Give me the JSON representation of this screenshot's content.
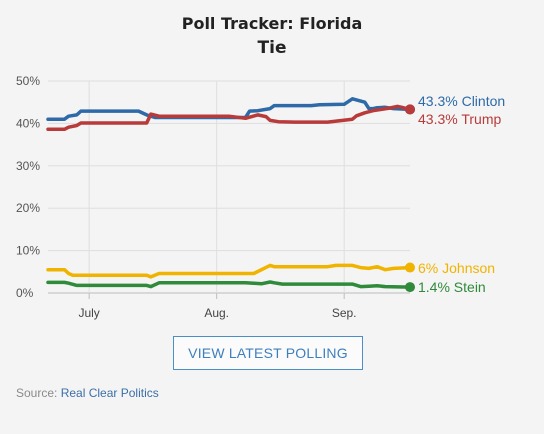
{
  "header": {
    "title": "Poll Tracker: Florida",
    "subtitle": "Tie"
  },
  "button": {
    "label": "VIEW LATEST POLLING"
  },
  "source": {
    "prefix": "Source:",
    "link": "Real Clear Politics"
  },
  "chart_data": {
    "type": "line",
    "title": "Poll Tracker: Florida",
    "ylim": [
      0,
      50
    ],
    "yticks": [
      0,
      10,
      20,
      30,
      40,
      50
    ],
    "ytick_labels": [
      "0%",
      "10%",
      "20%",
      "30%",
      "40%",
      "50%"
    ],
    "xticks": [
      {
        "label": "July",
        "x": 6
      },
      {
        "label": "Aug.",
        "x": 37
      },
      {
        "label": "Sep.",
        "x": 68
      }
    ],
    "xlim": [
      -4,
      84
    ],
    "grid": true,
    "series": [
      {
        "name": "Clinton",
        "label": "43.3% Clinton",
        "color": "#2e6aa8",
        "x": [
          -4,
          0,
          1,
          3,
          4,
          6,
          18,
          20,
          22,
          40,
          44,
          45,
          47,
          50,
          51,
          60,
          62,
          68,
          70,
          73,
          74,
          75,
          76,
          78,
          80,
          84
        ],
        "y": [
          41.0,
          41.0,
          41.7,
          42.0,
          42.9,
          42.9,
          42.9,
          42.0,
          41.4,
          41.4,
          41.4,
          42.9,
          43.0,
          43.5,
          44.2,
          44.2,
          44.4,
          44.5,
          45.8,
          45.0,
          43.5,
          43.5,
          43.7,
          43.8,
          43.5,
          43.3
        ]
      },
      {
        "name": "Trump",
        "label": "43.3% Trump",
        "color": "#b83a3a",
        "x": [
          -4,
          0,
          1,
          3,
          4,
          6,
          20,
          21,
          23,
          40,
          44,
          47,
          49,
          50,
          52,
          56,
          64,
          70,
          71,
          73,
          75,
          77,
          79,
          81,
          82,
          84
        ],
        "y": [
          38.6,
          38.6,
          39.1,
          39.5,
          40.1,
          40.1,
          40.1,
          42.2,
          41.7,
          41.7,
          41.2,
          42.0,
          41.6,
          40.7,
          40.4,
          40.3,
          40.3,
          41.0,
          41.8,
          42.5,
          43.0,
          43.3,
          43.6,
          44.0,
          43.8,
          43.3
        ]
      },
      {
        "name": "Johnson",
        "label": "6% Johnson",
        "color": "#f0b400",
        "x": [
          -4,
          0,
          1,
          2,
          20,
          21,
          23,
          44,
          46,
          50,
          51,
          56,
          64,
          66,
          70,
          72,
          74,
          76,
          78,
          80,
          84
        ],
        "y": [
          5.5,
          5.5,
          4.6,
          4.2,
          4.2,
          3.8,
          4.6,
          4.6,
          4.6,
          6.5,
          6.2,
          6.2,
          6.2,
          6.5,
          6.5,
          6.0,
          5.8,
          6.2,
          5.5,
          5.8,
          6.0
        ]
      },
      {
        "name": "Stein",
        "label": "1.4% Stein",
        "color": "#2f8a3a",
        "x": [
          -4,
          0,
          1,
          3,
          20,
          21,
          23,
          44,
          46,
          48,
          50,
          51,
          53,
          70,
          72,
          74,
          76,
          78,
          84
        ],
        "y": [
          2.5,
          2.5,
          2.3,
          1.8,
          1.8,
          1.5,
          2.4,
          2.4,
          2.3,
          2.2,
          2.6,
          2.4,
          2.1,
          2.1,
          1.5,
          1.6,
          1.7,
          1.5,
          1.4
        ]
      }
    ]
  }
}
